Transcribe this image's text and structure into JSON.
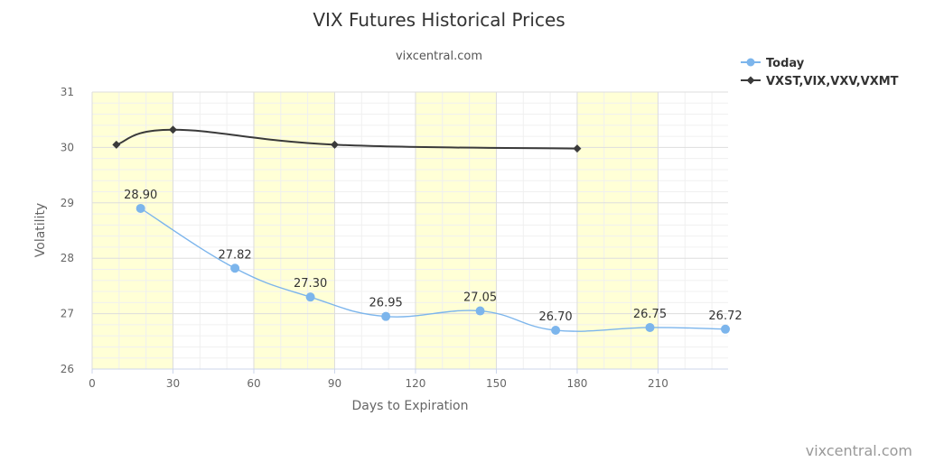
{
  "chart_data": {
    "type": "line",
    "title": "VIX Futures Historical Prices",
    "subtitle": "vixcentral.com",
    "xlabel": "Days to Expiration",
    "ylabel": "Volatility",
    "xlim": [
      0,
      236
    ],
    "ylim": [
      26,
      31
    ],
    "x_ticks": [
      0,
      30,
      60,
      90,
      120,
      150,
      180,
      210
    ],
    "y_ticks": [
      26,
      27,
      28,
      29,
      30,
      31
    ],
    "grid": true,
    "highlight_bands": [
      [
        0,
        30
      ],
      [
        60,
        90
      ],
      [
        120,
        150
      ],
      [
        180,
        210
      ]
    ],
    "legend_position": "top-right",
    "series": [
      {
        "name": "Today",
        "color": "#7cb5ec",
        "marker": "circle",
        "x": [
          18,
          53,
          81,
          109,
          144,
          172,
          207,
          235
        ],
        "y": [
          28.9,
          27.82,
          27.3,
          26.95,
          27.05,
          26.7,
          26.75,
          26.72
        ],
        "labels": [
          "28.90",
          "27.82",
          "27.30",
          "26.95",
          "27.05",
          "26.70",
          "26.75",
          "26.72"
        ]
      },
      {
        "name": "VXST,VIX,VXV,VXMT",
        "color": "#3a3a3a",
        "marker": "diamond",
        "x": [
          9,
          30,
          90,
          180
        ],
        "y": [
          30.05,
          30.32,
          30.05,
          29.98
        ]
      }
    ]
  },
  "credit": "vixcentral.com"
}
